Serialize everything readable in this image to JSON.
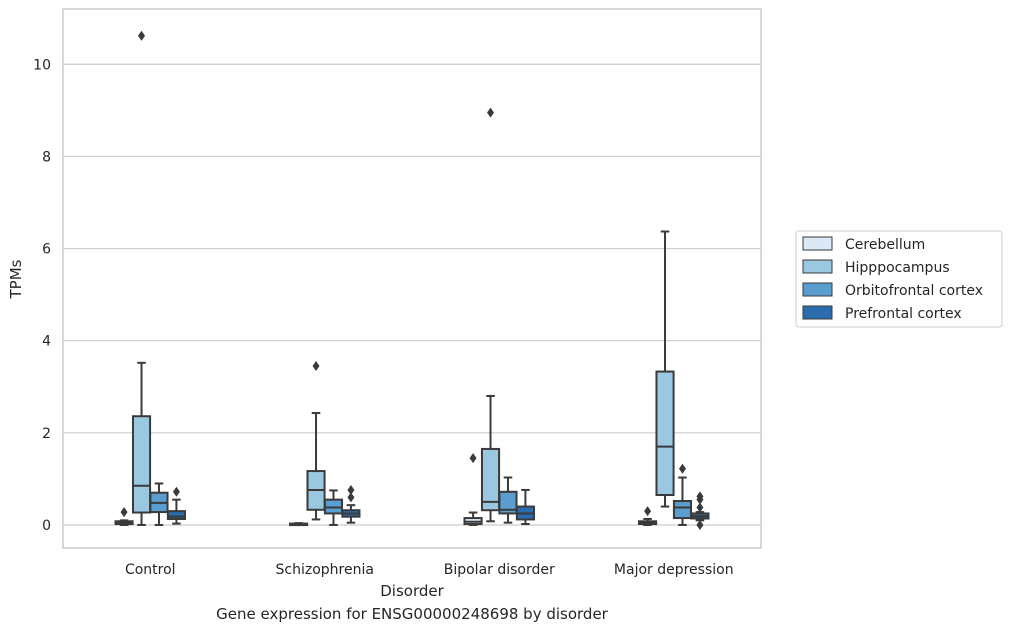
{
  "caption": "Gene expression for ENSG00000248698 by disorder",
  "chart_data": {
    "type": "box",
    "xlabel": "Disorder",
    "ylabel": "TPMs",
    "ylim": [
      -0.5,
      11.2
    ],
    "yticks": [
      0,
      2,
      4,
      6,
      8,
      10
    ],
    "categories": [
      "Control",
      "Schizophrenia",
      "Bipolar disorder",
      "Major depression"
    ],
    "grid": "horizontal",
    "legend_position": "right",
    "series": [
      {
        "name": "Cerebellum",
        "color": "#dbe9f6",
        "boxes": [
          {
            "whislo": 0.0,
            "q1": 0.02,
            "med": 0.05,
            "q3": 0.08,
            "whishi": 0.1,
            "fliers": [
              0.28
            ]
          },
          {
            "whislo": 0.0,
            "q1": 0.0,
            "med": 0.01,
            "q3": 0.03,
            "whishi": 0.04,
            "fliers": []
          },
          {
            "whislo": 0.0,
            "q1": 0.02,
            "med": 0.07,
            "q3": 0.15,
            "whishi": 0.27,
            "fliers": [
              1.45
            ]
          },
          {
            "whislo": 0.0,
            "q1": 0.02,
            "med": 0.05,
            "q3": 0.08,
            "whishi": 0.13,
            "fliers": [
              0.3
            ]
          }
        ]
      },
      {
        "name": "Hipppocampus",
        "color": "#9ac8e0",
        "boxes": [
          {
            "whislo": 0.0,
            "q1": 0.27,
            "med": 0.85,
            "q3": 2.36,
            "whishi": 3.52,
            "fliers": [
              10.62
            ]
          },
          {
            "whislo": 0.12,
            "q1": 0.33,
            "med": 0.76,
            "q3": 1.17,
            "whishi": 2.43,
            "fliers": [
              3.45
            ]
          },
          {
            "whislo": 0.08,
            "q1": 0.32,
            "med": 0.5,
            "q3": 1.65,
            "whishi": 2.8,
            "fliers": [
              8.95
            ]
          },
          {
            "whislo": 0.4,
            "q1": 0.65,
            "med": 1.7,
            "q3": 3.33,
            "whishi": 6.37,
            "fliers": []
          }
        ]
      },
      {
        "name": "Orbitofrontal cortex",
        "color": "#5a9ecf",
        "boxes": [
          {
            "whislo": 0.0,
            "q1": 0.28,
            "med": 0.48,
            "q3": 0.7,
            "whishi": 0.9,
            "fliers": []
          },
          {
            "whislo": 0.0,
            "q1": 0.25,
            "med": 0.38,
            "q3": 0.55,
            "whishi": 0.75,
            "fliers": []
          },
          {
            "whislo": 0.05,
            "q1": 0.25,
            "med": 0.33,
            "q3": 0.72,
            "whishi": 1.03,
            "fliers": []
          },
          {
            "whislo": 0.0,
            "q1": 0.15,
            "med": 0.38,
            "q3": 0.52,
            "whishi": 1.03,
            "fliers": [
              1.22
            ]
          }
        ]
      },
      {
        "name": "Prefrontal cortex",
        "color": "#2a6cad",
        "boxes": [
          {
            "whislo": 0.03,
            "q1": 0.13,
            "med": 0.18,
            "q3": 0.3,
            "whishi": 0.55,
            "fliers": [
              0.72
            ]
          },
          {
            "whislo": 0.05,
            "q1": 0.18,
            "med": 0.25,
            "q3": 0.32,
            "whishi": 0.43,
            "fliers": [
              0.6,
              0.76
            ]
          },
          {
            "whislo": 0.02,
            "q1": 0.12,
            "med": 0.25,
            "q3": 0.4,
            "whishi": 0.76,
            "fliers": []
          },
          {
            "whislo": 0.1,
            "q1": 0.14,
            "med": 0.19,
            "q3": 0.25,
            "whishi": 0.28,
            "fliers": [
              0.0,
              0.38,
              0.55,
              0.62
            ]
          }
        ]
      }
    ]
  }
}
